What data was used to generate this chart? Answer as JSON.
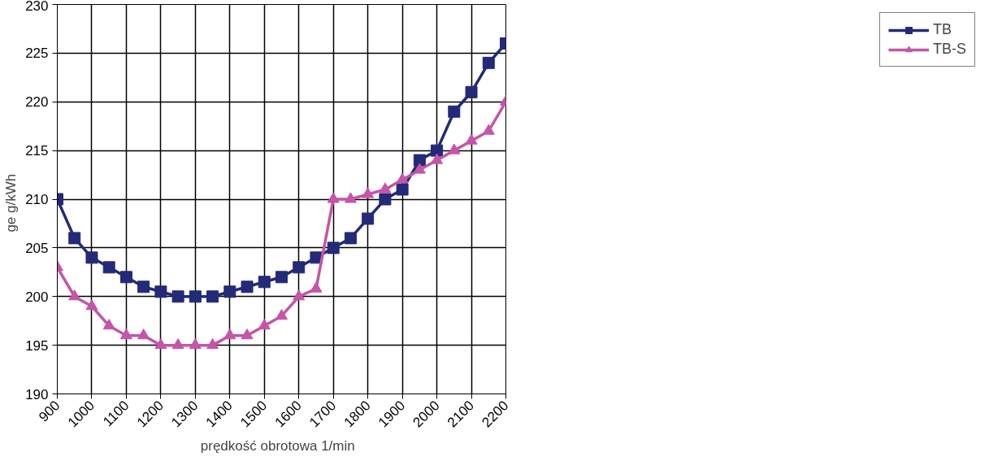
{
  "chart_data": {
    "type": "line",
    "xlabel": "prędkość obrotowa   1/min",
    "ylabel": "ge   g/kWh",
    "x": [
      900,
      950,
      1000,
      1050,
      1100,
      1150,
      1200,
      1250,
      1300,
      1350,
      1400,
      1450,
      1500,
      1550,
      1600,
      1650,
      1700,
      1750,
      1800,
      1850,
      1900,
      1950,
      2000,
      2050,
      2100,
      2150,
      2200
    ],
    "series": [
      {
        "name": "TB",
        "color": "#232a78",
        "marker": "square",
        "values": [
          210,
          206,
          204,
          203,
          202,
          201,
          200.5,
          200,
          200,
          200,
          200.5,
          201,
          201.5,
          202,
          203,
          204,
          205,
          206,
          208,
          210,
          211,
          214,
          215,
          219,
          221,
          224,
          226
        ]
      },
      {
        "name": "TB-S",
        "color": "#c455a8",
        "marker": "triangle",
        "values": [
          203,
          200,
          199,
          197,
          196,
          196,
          195,
          195,
          195,
          195,
          196,
          196,
          197,
          198,
          200,
          200.8,
          210,
          210,
          210.5,
          211,
          212,
          213,
          214,
          215,
          216,
          217,
          220
        ]
      }
    ],
    "xlim": [
      900,
      2200
    ],
    "xticks": [
      900,
      1000,
      1100,
      1200,
      1300,
      1400,
      1500,
      1600,
      1700,
      1800,
      1900,
      2000,
      2100,
      2200
    ],
    "ylim": [
      190,
      230
    ],
    "yticks": [
      190,
      195,
      200,
      205,
      210,
      215,
      220,
      225,
      230
    ],
    "grid": true,
    "legend": "right",
    "line_style": "solid"
  }
}
